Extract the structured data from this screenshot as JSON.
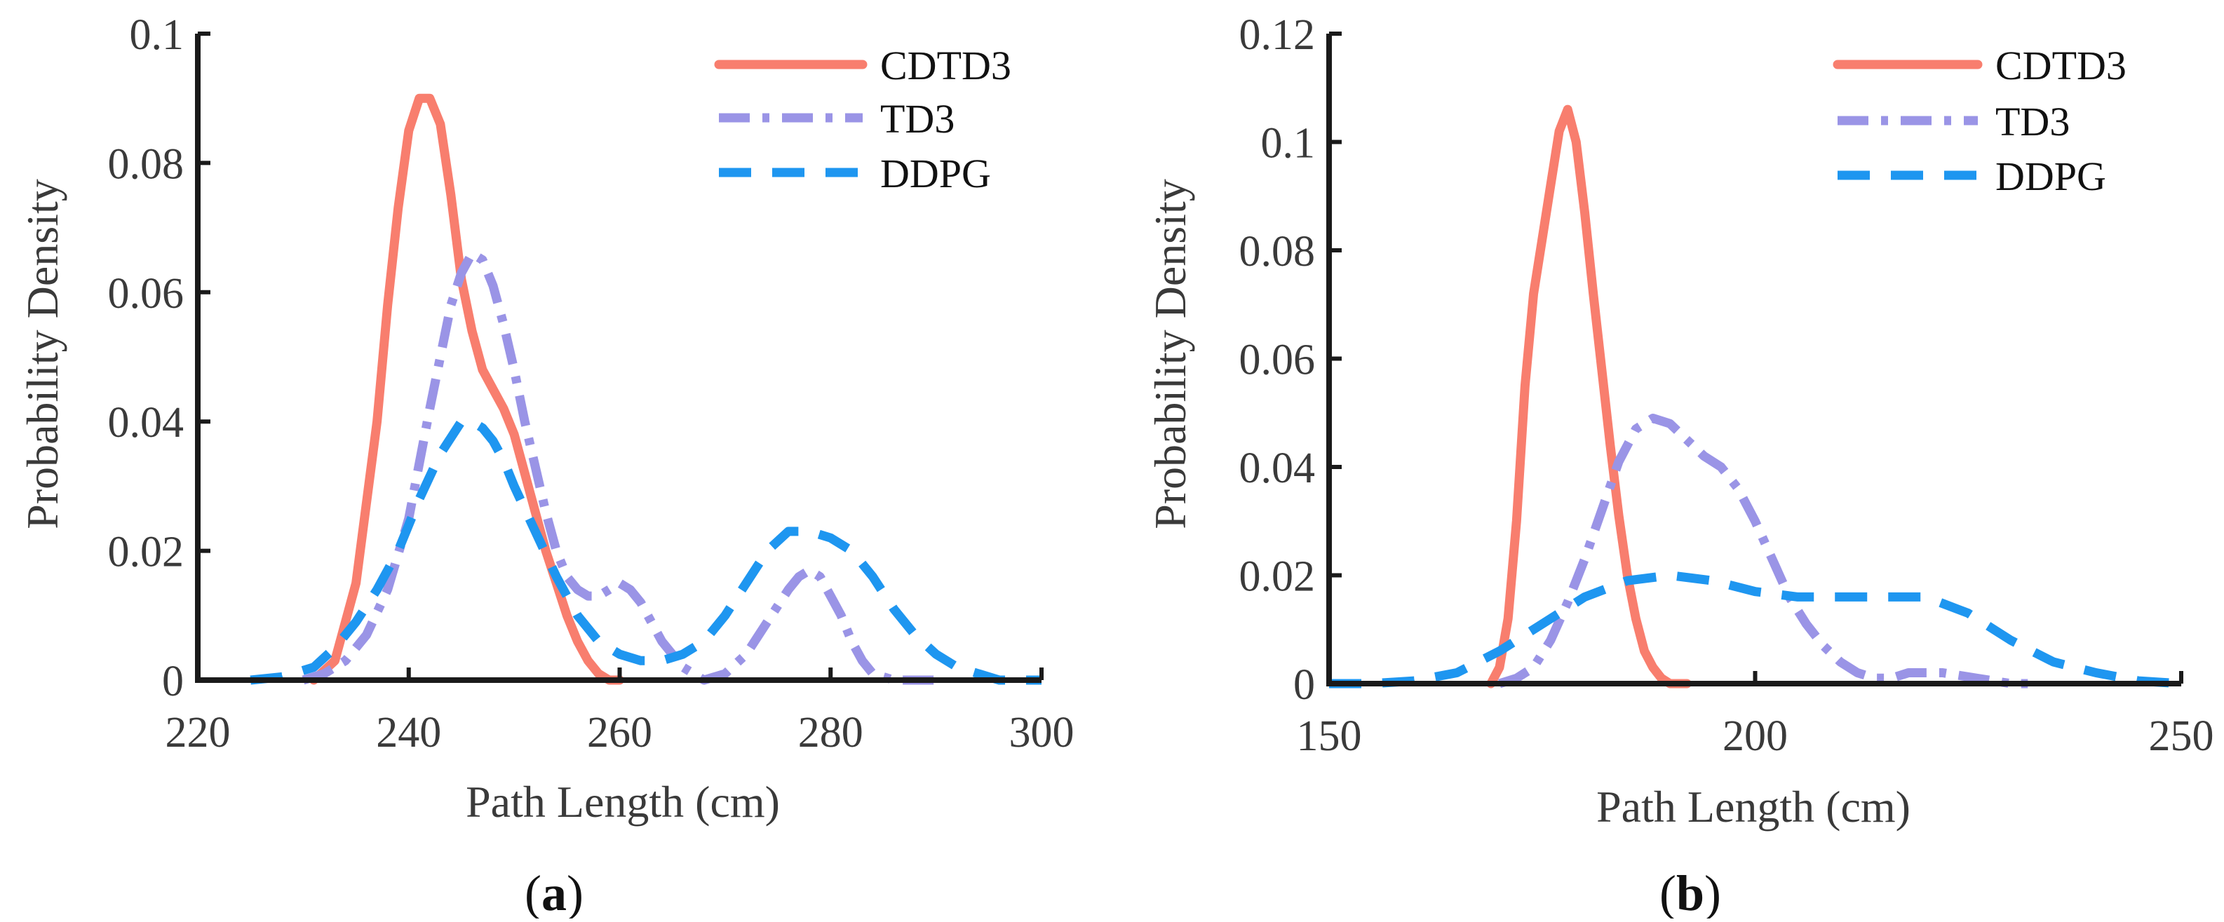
{
  "colors": {
    "CDTD3": "#f87e6e",
    "TD3": "#9a94e6",
    "DDPG": "#1e96f0",
    "axis": "#1a1a1a"
  },
  "chart_data": [
    {
      "type": "line",
      "panel_label": "a",
      "xlabel": "Path Length (cm)",
      "ylabel": "Probability Density",
      "xlim": [
        220,
        300
      ],
      "ylim": [
        0,
        0.1
      ],
      "xticks": [
        220,
        240,
        260,
        280,
        300
      ],
      "yticks": [
        0,
        0.02,
        0.04,
        0.06,
        0.08,
        0.1
      ],
      "xtick_labels": [
        "220",
        "240",
        "260",
        "280",
        "300"
      ],
      "ytick_labels": [
        "0",
        "0.02",
        "0.04",
        "0.06",
        "0.08",
        "0.1"
      ],
      "legend": "top-right",
      "series": [
        {
          "name": "CDTD3",
          "style": "solid",
          "x": [
            231,
            233,
            235,
            237,
            238,
            239,
            240,
            241,
            242,
            243,
            244,
            245,
            246,
            247,
            248,
            249,
            250,
            251,
            252,
            253,
            254,
            255,
            256,
            257,
            258,
            259,
            260
          ],
          "y": [
            0,
            0.003,
            0.015,
            0.04,
            0.058,
            0.073,
            0.085,
            0.09,
            0.09,
            0.086,
            0.075,
            0.062,
            0.054,
            0.048,
            0.045,
            0.042,
            0.038,
            0.032,
            0.026,
            0.02,
            0.015,
            0.01,
            0.006,
            0.003,
            0.001,
            0,
            0
          ]
        },
        {
          "name": "TD3",
          "style": "dashdot",
          "x": [
            230,
            232,
            234,
            236,
            238,
            240,
            242,
            244,
            245,
            246,
            247,
            248,
            249,
            250,
            251,
            252,
            253,
            254,
            255,
            256,
            257,
            258,
            259,
            260,
            261,
            262,
            263,
            264,
            266,
            268,
            270,
            272,
            274,
            276,
            277,
            278,
            279,
            280,
            281,
            282,
            283,
            284,
            286,
            288,
            290
          ],
          "y": [
            0,
            0.001,
            0.003,
            0.007,
            0.014,
            0.025,
            0.042,
            0.058,
            0.063,
            0.066,
            0.065,
            0.061,
            0.055,
            0.048,
            0.04,
            0.033,
            0.026,
            0.02,
            0.016,
            0.014,
            0.013,
            0.013,
            0.014,
            0.015,
            0.014,
            0.012,
            0.009,
            0.006,
            0.002,
            0,
            0.001,
            0.004,
            0.009,
            0.014,
            0.016,
            0.017,
            0.016,
            0.013,
            0.01,
            0.006,
            0.003,
            0.001,
            0,
            0,
            0
          ]
        },
        {
          "name": "DDPG",
          "style": "dashed",
          "x": [
            225,
            228,
            231,
            233,
            235,
            237,
            239,
            241,
            243,
            245,
            246,
            247,
            248,
            249,
            250,
            252,
            254,
            256,
            258,
            260,
            262,
            264,
            266,
            268,
            270,
            272,
            274,
            276,
            278,
            280,
            282,
            284,
            286,
            288,
            290,
            292,
            294,
            296,
            298,
            300
          ],
          "y": [
            0,
            0.0005,
            0.002,
            0.005,
            0.009,
            0.014,
            0.02,
            0.028,
            0.035,
            0.04,
            0.04,
            0.039,
            0.037,
            0.034,
            0.03,
            0.023,
            0.016,
            0.01,
            0.006,
            0.004,
            0.003,
            0.003,
            0.004,
            0.006,
            0.01,
            0.015,
            0.02,
            0.023,
            0.023,
            0.022,
            0.02,
            0.016,
            0.011,
            0.007,
            0.004,
            0.002,
            0.001,
            0,
            0,
            0
          ]
        }
      ]
    },
    {
      "type": "line",
      "panel_label": "b",
      "xlabel": "Path Length (cm)",
      "ylabel": "Probability Density",
      "xlim": [
        150,
        250
      ],
      "ylim": [
        0,
        0.12
      ],
      "xticks": [
        150,
        200,
        250
      ],
      "yticks": [
        0,
        0.02,
        0.04,
        0.06,
        0.08,
        0.1,
        0.12
      ],
      "xtick_labels": [
        "150",
        "200",
        "250"
      ],
      "ytick_labels": [
        "0",
        "0.02",
        "0.04",
        "0.06",
        "0.08",
        "0.1",
        "0.12"
      ],
      "legend": "top-right",
      "series": [
        {
          "name": "CDTD3",
          "style": "solid",
          "x": [
            169,
            170,
            171,
            172,
            173,
            174,
            175,
            176,
            177,
            178,
            179,
            180,
            181,
            182,
            183,
            184,
            185,
            186,
            187,
            188,
            189,
            190,
            191,
            192
          ],
          "y": [
            0,
            0.003,
            0.012,
            0.03,
            0.055,
            0.072,
            0.082,
            0.092,
            0.102,
            0.106,
            0.1,
            0.087,
            0.072,
            0.058,
            0.044,
            0.031,
            0.02,
            0.012,
            0.006,
            0.003,
            0.001,
            0,
            0,
            0
          ]
        },
        {
          "name": "TD3",
          "style": "dashdot",
          "x": [
            170,
            172,
            174,
            176,
            178,
            180,
            182,
            184,
            186,
            188,
            190,
            192,
            194,
            196,
            198,
            200,
            202,
            204,
            206,
            208,
            210,
            212,
            214,
            216,
            218,
            220,
            222,
            224,
            226,
            228,
            230,
            232
          ],
          "y": [
            0,
            0.001,
            0.003,
            0.008,
            0.015,
            0.023,
            0.032,
            0.041,
            0.047,
            0.049,
            0.048,
            0.045,
            0.042,
            0.04,
            0.036,
            0.03,
            0.023,
            0.016,
            0.011,
            0.007,
            0.004,
            0.002,
            0.001,
            0.001,
            0.002,
            0.002,
            0.002,
            0.0015,
            0.001,
            0.0005,
            0,
            0
          ]
        },
        {
          "name": "DDPG",
          "style": "dashed",
          "x": [
            150,
            155,
            160,
            165,
            170,
            175,
            180,
            185,
            190,
            195,
            200,
            205,
            210,
            215,
            220,
            225,
            230,
            235,
            240,
            245,
            250
          ],
          "y": [
            0,
            0,
            0.0005,
            0.002,
            0.006,
            0.011,
            0.016,
            0.019,
            0.02,
            0.019,
            0.017,
            0.016,
            0.016,
            0.016,
            0.016,
            0.013,
            0.008,
            0.004,
            0.002,
            0.0005,
            0
          ]
        }
      ]
    }
  ]
}
